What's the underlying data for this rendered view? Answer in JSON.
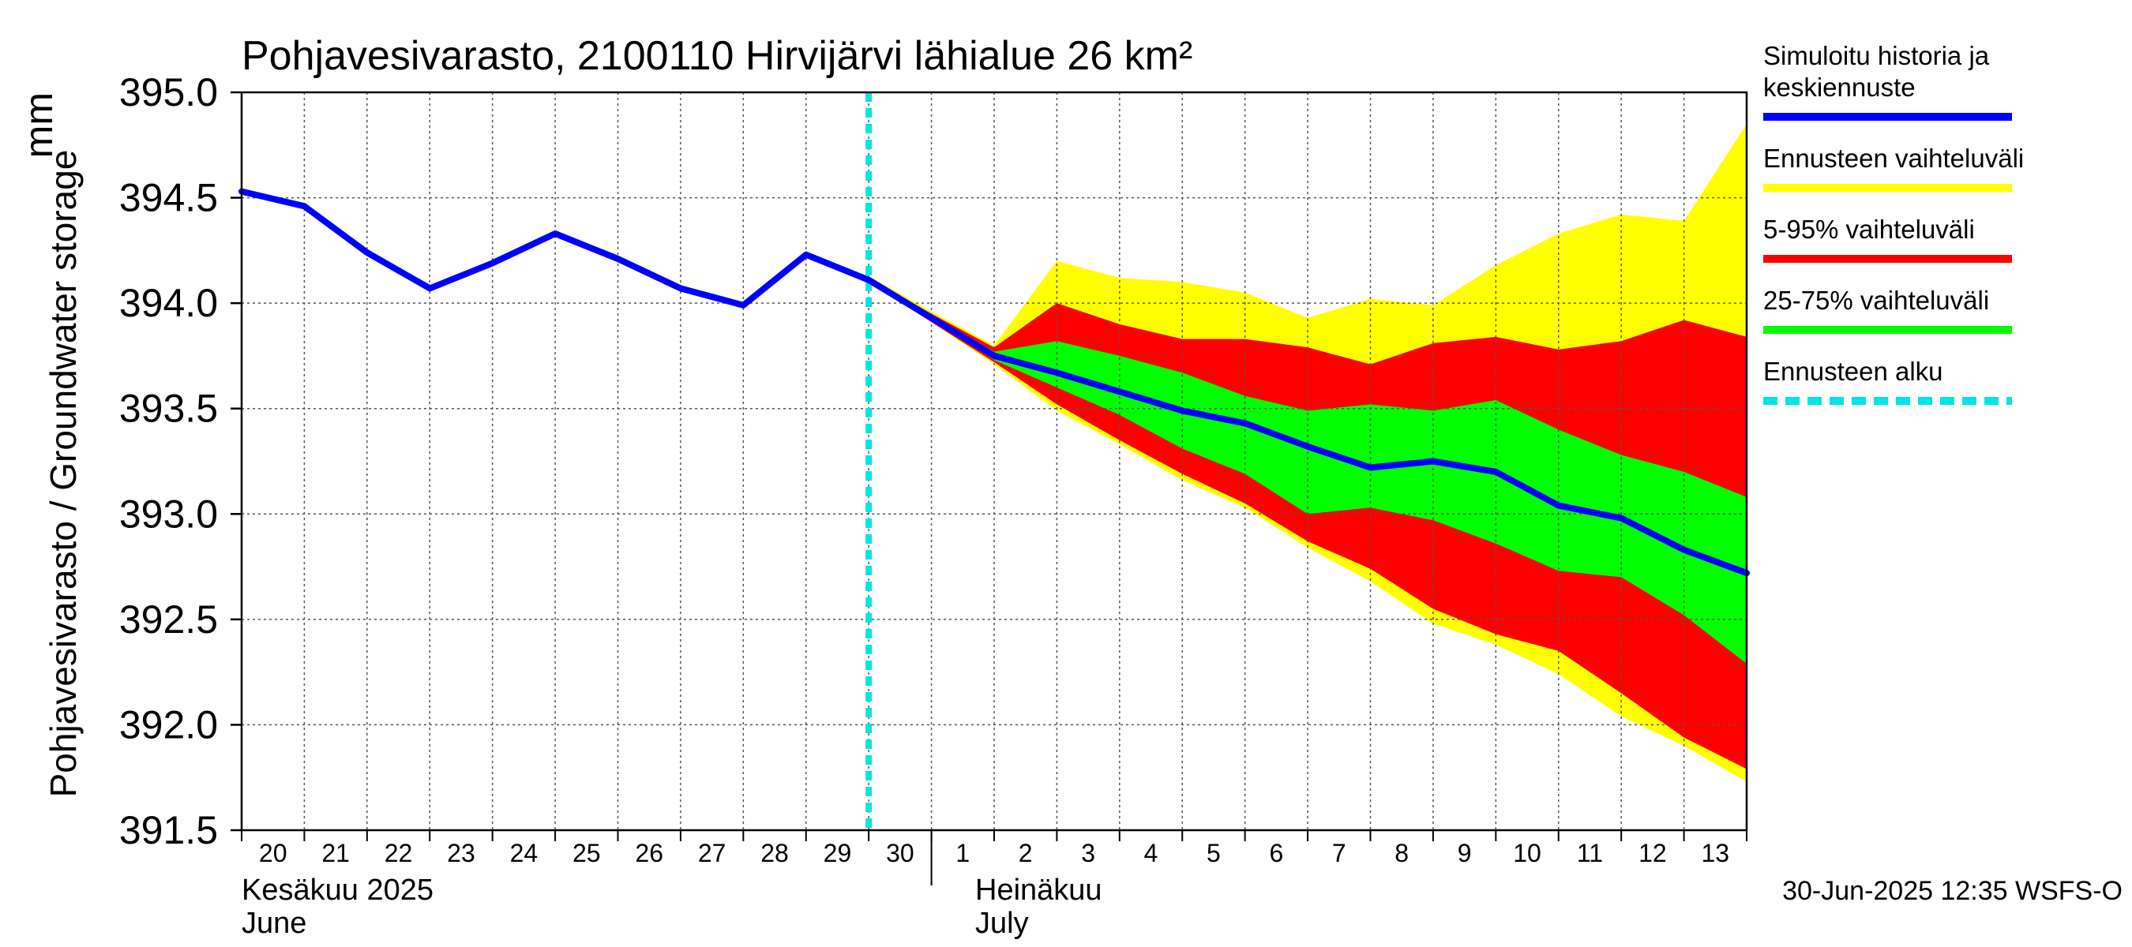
{
  "chart_data": {
    "type": "area",
    "title": "Pohjavesivarasto, 2100110 Hirvijärvi lähialue 26 km²",
    "unit_label": "mm",
    "ylabel": "Pohjavesivarasto / Groundwater storage",
    "ylim": [
      391.5,
      395.0
    ],
    "yticks": [
      391.5,
      392.0,
      392.5,
      393.0,
      393.5,
      394.0,
      394.5,
      395.0
    ],
    "ytick_labels": [
      "391.5",
      "392.0",
      "392.5",
      "393.0",
      "393.5",
      "394.0",
      "394.5",
      "395.0"
    ],
    "x_range": [
      -10,
      14
    ],
    "x_day_labels": [
      "20",
      "21",
      "22",
      "23",
      "24",
      "25",
      "26",
      "27",
      "28",
      "29",
      "30",
      "1",
      "2",
      "3",
      "4",
      "5",
      "6",
      "7",
      "8",
      "9",
      "10",
      "11",
      "12",
      "13"
    ],
    "month_labels": [
      {
        "fi": "Kesäkuu  2025",
        "en": "June"
      },
      {
        "fi": "Heinäkuu",
        "en": "July"
      }
    ],
    "grid": true,
    "forecast_start": 0,
    "history": {
      "name": "Simuloitu historia ja keskiennuste",
      "x": [
        -10,
        -9,
        -8,
        -7,
        -6,
        -5,
        -4,
        -3,
        -2,
        -1,
        0
      ],
      "y": [
        394.53,
        394.46,
        394.24,
        394.07,
        394.19,
        394.33,
        394.21,
        394.07,
        393.99,
        394.23,
        394.11
      ]
    },
    "forecast_x": [
      0,
      1,
      2,
      3,
      4,
      5,
      6,
      7,
      8,
      9,
      10,
      11,
      12,
      13,
      14
    ],
    "median": [
      394.11,
      393.93,
      393.75,
      393.67,
      393.58,
      393.49,
      393.43,
      393.32,
      393.22,
      393.25,
      393.2,
      393.04,
      392.98,
      392.83,
      392.72
    ],
    "band_full": {
      "name": "Ennusteen vaihteluväli",
      "upper": [
        394.13,
        393.96,
        393.8,
        394.2,
        394.12,
        394.1,
        394.05,
        393.93,
        394.02,
        393.99,
        394.18,
        394.33,
        394.42,
        394.39,
        394.85
      ],
      "lower": [
        394.1,
        393.91,
        393.71,
        393.49,
        393.33,
        393.16,
        393.03,
        392.84,
        392.68,
        392.48,
        392.38,
        392.24,
        392.04,
        391.9,
        391.73
      ]
    },
    "band_5_95": {
      "name": "5-95% vaihteluväli",
      "upper": [
        394.12,
        393.95,
        393.79,
        394.0,
        393.9,
        393.83,
        393.83,
        393.79,
        393.71,
        393.81,
        393.84,
        393.78,
        393.82,
        393.92,
        393.84
      ],
      "lower": [
        394.1,
        393.91,
        393.72,
        393.52,
        393.35,
        393.19,
        393.05,
        392.87,
        392.74,
        392.55,
        392.43,
        392.35,
        392.15,
        391.94,
        391.79
      ]
    },
    "band_25_75": {
      "name": "25-75% vaihteluväli",
      "upper": [
        394.11,
        393.94,
        393.77,
        393.82,
        393.75,
        393.67,
        393.56,
        393.49,
        393.52,
        393.49,
        393.54,
        393.4,
        393.28,
        393.2,
        393.08
      ],
      "lower": [
        394.1,
        393.92,
        393.73,
        393.6,
        393.47,
        393.31,
        393.19,
        393.0,
        393.03,
        392.97,
        392.86,
        392.73,
        392.7,
        392.52,
        392.29
      ]
    },
    "legend_placement": "right",
    "legend": [
      {
        "label_lines": [
          "Simuloitu historia ja",
          "keskiennuste"
        ],
        "color": "#0000ff",
        "style": "line"
      },
      {
        "label_lines": [
          "Ennusteen vaihteluväli"
        ],
        "color": "#ffff00",
        "style": "line"
      },
      {
        "label_lines": [
          "5-95% vaihteluväli"
        ],
        "color": "#ff0000",
        "style": "line"
      },
      {
        "label_lines": [
          "25-75% vaihteluväli"
        ],
        "color": "#00ff00",
        "style": "line"
      },
      {
        "label_lines": [
          "Ennusteen alku"
        ],
        "color": "#00e5e5",
        "style": "dashed"
      }
    ],
    "colors": {
      "history": "#0000ff",
      "full": "#ffff00",
      "p5_95": "#ff0000",
      "p25_75": "#00ff00",
      "forecast_start": "#00e5e5"
    },
    "footer": "30-Jun-2025 12:35 WSFS-O"
  }
}
